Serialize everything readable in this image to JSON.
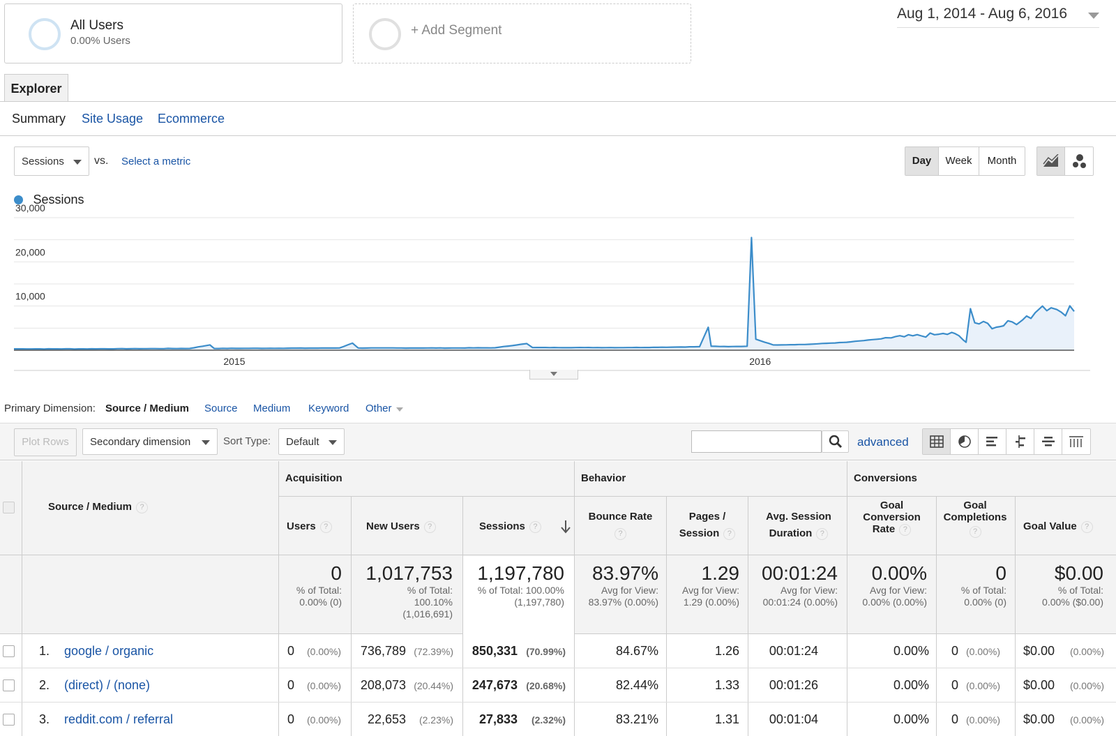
{
  "segments": {
    "all_users": {
      "title": "All Users",
      "subtitle": "0.00% Users"
    },
    "add_segment": "+ Add Segment"
  },
  "date_range": "Aug 1, 2014 - Aug 6, 2016",
  "tabs": {
    "explorer": "Explorer"
  },
  "subtabs": [
    "Summary",
    "Site Usage",
    "Ecommerce"
  ],
  "metric_picker": {
    "selected": "Sessions",
    "vs": "vs.",
    "select_metric": "Select a metric"
  },
  "granularity": [
    "Day",
    "Week",
    "Month"
  ],
  "granularity_selected": "Day",
  "chart_data": {
    "type": "area",
    "series": [
      {
        "name": "Sessions",
        "color": "#3c8dca"
      }
    ],
    "yticks": [
      "30,000",
      "20,000",
      "10,000"
    ],
    "ylim": [
      0,
      30000
    ],
    "xlabels": [
      "2015",
      "2016"
    ],
    "x_range": [
      "2014-08-01",
      "2016-08-06"
    ],
    "points": [
      [
        "2014-08-01",
        300
      ],
      [
        "2014-09-15",
        300
      ],
      [
        "2014-11-01",
        350
      ],
      [
        "2014-12-01",
        400
      ],
      [
        "2014-12-15",
        1200
      ],
      [
        "2014-12-18",
        400
      ],
      [
        "2015-02-01",
        450
      ],
      [
        "2015-03-15",
        500
      ],
      [
        "2015-03-24",
        1600
      ],
      [
        "2015-03-28",
        500
      ],
      [
        "2015-06-01",
        500
      ],
      [
        "2015-07-01",
        550
      ],
      [
        "2015-07-23",
        1500
      ],
      [
        "2015-07-27",
        600
      ],
      [
        "2015-09-01",
        600
      ],
      [
        "2015-10-01",
        600
      ],
      [
        "2015-11-01",
        700
      ],
      [
        "2015-11-20",
        800
      ],
      [
        "2015-11-26",
        5200
      ],
      [
        "2015-11-28",
        900
      ],
      [
        "2015-12-10",
        800
      ],
      [
        "2015-12-23",
        900
      ],
      [
        "2015-12-26",
        25500
      ],
      [
        "2015-12-29",
        2500
      ],
      [
        "2016-01-10",
        1200
      ],
      [
        "2016-02-01",
        1300
      ],
      [
        "2016-03-01",
        1800
      ],
      [
        "2016-04-01",
        2800
      ],
      [
        "2016-05-01",
        3500
      ],
      [
        "2016-05-15",
        3800
      ],
      [
        "2016-05-23",
        1800
      ],
      [
        "2016-05-26",
        9400
      ],
      [
        "2016-05-29",
        6200
      ],
      [
        "2016-06-15",
        5300
      ],
      [
        "2016-07-01",
        6800
      ],
      [
        "2016-07-10",
        8500
      ],
      [
        "2016-07-15",
        10000
      ],
      [
        "2016-07-25",
        9200
      ],
      [
        "2016-08-06",
        8800
      ]
    ]
  },
  "primary_dimension": {
    "label": "Primary Dimension:",
    "selected": "Source / Medium",
    "options": [
      "Source",
      "Medium",
      "Keyword",
      "Other"
    ]
  },
  "toolbar": {
    "plot_rows": "Plot Rows",
    "secondary_dimension": "Secondary dimension",
    "sort_type_label": "Sort Type:",
    "sort_type_value": "Default",
    "search_value": "",
    "advanced": "advanced"
  },
  "table": {
    "dimension_header": "Source / Medium",
    "groups": {
      "acquisition": "Acquisition",
      "behavior": "Behavior",
      "conversions": "Conversions"
    },
    "columns": {
      "users": "Users",
      "new_users": "New Users",
      "sessions": "Sessions",
      "bounce_rate": "Bounce Rate",
      "pages_session": "Pages / Session",
      "avg_session": "Avg. Session Duration",
      "goal_conv_rate": "Goal Conversion Rate",
      "goal_completions": "Goal Completions",
      "goal_value": "Goal Value"
    },
    "totals": {
      "users": {
        "big": "0",
        "sub": [
          "% of Total:",
          "0.00% (0)"
        ]
      },
      "new_users": {
        "big": "1,017,753",
        "sub": [
          "% of Total:",
          "100.10%",
          "(1,016,691)"
        ]
      },
      "sessions": {
        "big": "1,197,780",
        "sub": [
          "% of Total: 100.00%",
          "(1,197,780)"
        ]
      },
      "bounce_rate": {
        "big": "83.97%",
        "sub": [
          "Avg for View:",
          "83.97% (0.00%)"
        ]
      },
      "pages_session": {
        "big": "1.29",
        "sub": [
          "Avg for View:",
          "1.29 (0.00%)"
        ]
      },
      "avg_session": {
        "big": "00:01:24",
        "sub": [
          "Avg for View:",
          "00:01:24 (0.00%)"
        ]
      },
      "goal_conv_rate": {
        "big": "0.00%",
        "sub": [
          "Avg for View:",
          "0.00% (0.00%)"
        ]
      },
      "goal_completions": {
        "big": "0",
        "sub": [
          "% of Total:",
          "0.00% (0)"
        ]
      },
      "goal_value": {
        "big": "$0.00",
        "sub": [
          "% of Total:",
          "0.00% ($0.00)"
        ]
      }
    },
    "rows": [
      {
        "num": "1.",
        "name": "google / organic",
        "users": "0",
        "users_pct": "(0.00%)",
        "new_users": "736,789",
        "new_users_pct": "(72.39%)",
        "sessions": "850,331",
        "sessions_pct": "(70.99%)",
        "bounce": "84.67%",
        "pages": "1.26",
        "duration": "00:01:24",
        "conv": "0.00%",
        "completions": "0",
        "completions_pct": "(0.00%)",
        "value": "$0.00",
        "value_pct": "(0.00%)"
      },
      {
        "num": "2.",
        "name": "(direct) / (none)",
        "users": "0",
        "users_pct": "(0.00%)",
        "new_users": "208,073",
        "new_users_pct": "(20.44%)",
        "sessions": "247,673",
        "sessions_pct": "(20.68%)",
        "bounce": "82.44%",
        "pages": "1.33",
        "duration": "00:01:26",
        "conv": "0.00%",
        "completions": "0",
        "completions_pct": "(0.00%)",
        "value": "$0.00",
        "value_pct": "(0.00%)"
      },
      {
        "num": "3.",
        "name": "reddit.com / referral",
        "users": "0",
        "users_pct": "(0.00%)",
        "new_users": "22,653",
        "new_users_pct": "(2.23%)",
        "sessions": "27,833",
        "sessions_pct": "(2.32%)",
        "bounce": "83.21%",
        "pages": "1.31",
        "duration": "00:01:04",
        "conv": "0.00%",
        "completions": "0",
        "completions_pct": "(0.00%)",
        "value": "$0.00",
        "value_pct": "(0.00%)"
      }
    ]
  }
}
